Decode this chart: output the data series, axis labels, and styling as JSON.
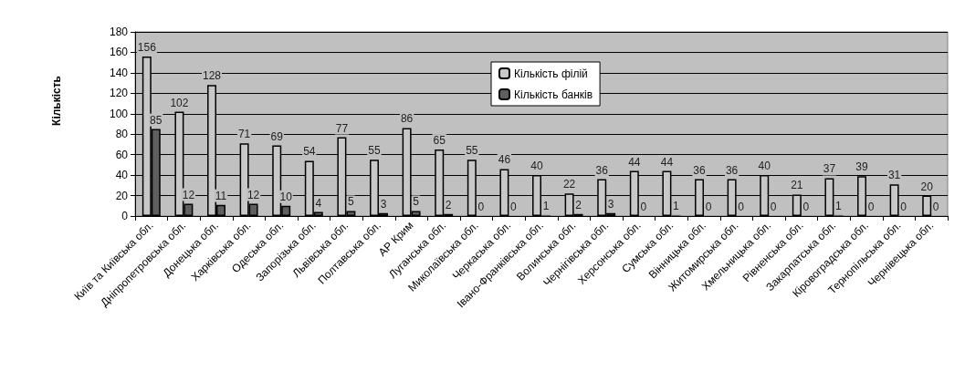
{
  "chart_data": {
    "type": "bar",
    "ylabel": "Кількість",
    "categories": [
      "Київ та Київська обл.",
      "Дніпропетровська обл.",
      "Донецька обл.",
      "Харківська обл.",
      "Одеська обл.",
      "Запорізька обл.",
      "Львівська обл.",
      "Полтавська обл.",
      "АР Крим",
      "Луганська обл.",
      "Миколаївська обл.",
      "Черкаська обл.",
      "Івано-Франківська обл.",
      "Волинська обл.",
      "Чернігівська обл.",
      "Херсонська обл.",
      "Сумська обл.",
      "Вінницька обл.",
      "Житомирська обл.",
      "Хмельницька обл.",
      "Рівненська обл.",
      "Закарпатська обл.",
      "Кіровоградська обл.",
      "Тернопільська обл.",
      "Чернівецька обл."
    ],
    "series": [
      {
        "name": "Кількість філій",
        "color": "#c8c8c8",
        "values": [
          156,
          102,
          128,
          71,
          69,
          54,
          77,
          55,
          86,
          65,
          55,
          46,
          40,
          22,
          36,
          44,
          44,
          36,
          36,
          40,
          21,
          37,
          39,
          31,
          20
        ]
      },
      {
        "name": "Кількість банків",
        "color": "#5f5f5f",
        "values": [
          85,
          12,
          11,
          12,
          10,
          4,
          5,
          3,
          5,
          2,
          0,
          0,
          1,
          2,
          3,
          0,
          1,
          0,
          0,
          0,
          0,
          1,
          0,
          0,
          0
        ]
      }
    ],
    "ylim": [
      0,
      180
    ],
    "yticks": [
      0,
      20,
      40,
      60,
      80,
      100,
      120,
      140,
      160,
      180
    ],
    "grid": "y",
    "legend": "top",
    "data_labels": true
  }
}
